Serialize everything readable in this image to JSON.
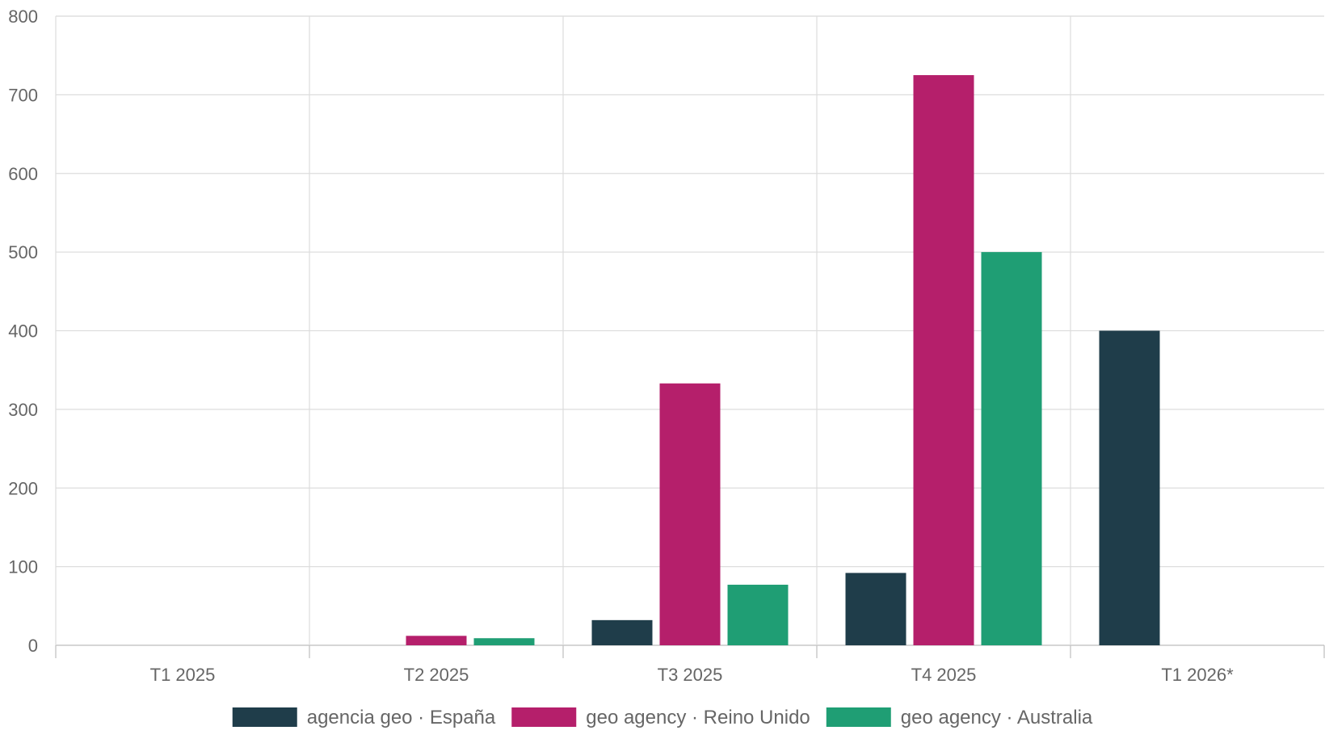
{
  "chart_data": {
    "type": "bar",
    "title": "",
    "xlabel": "",
    "ylabel": "",
    "categories": [
      "T1 2025",
      "T2 2025",
      "T3 2025",
      "T4 2025",
      "T1 2026*"
    ],
    "ylim": [
      0,
      800
    ],
    "yticks": [
      0,
      100,
      200,
      300,
      400,
      500,
      600,
      700,
      800
    ],
    "grid": true,
    "legend_position": "bottom",
    "series": [
      {
        "name": "agencia geo · España",
        "color": "#1f3d4a",
        "values": [
          0,
          0,
          32,
          92,
          400
        ]
      },
      {
        "name": "geo agency · Reino Unido",
        "color": "#b51f6b",
        "values": [
          0,
          12,
          333,
          725,
          0
        ]
      },
      {
        "name": "geo agency · Australia",
        "color": "#1f9e74",
        "values": [
          0,
          9,
          77,
          500,
          0
        ]
      }
    ]
  }
}
